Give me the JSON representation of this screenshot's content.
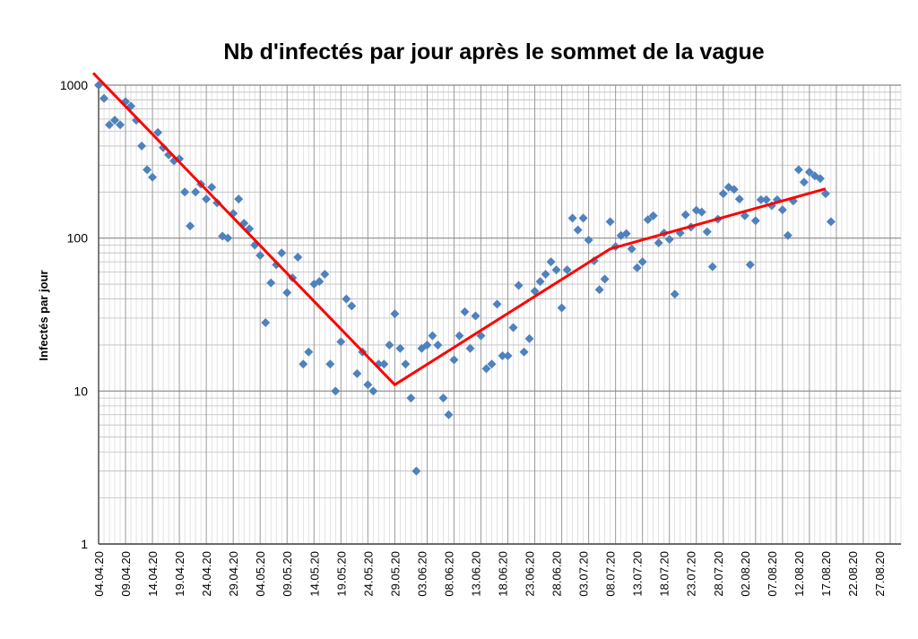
{
  "chart_data": {
    "type": "scatter",
    "title": "Nb d'infectés par jour après le sommet de la vague",
    "xlabel": "",
    "ylabel": "Infectés par jour",
    "yscale": "log",
    "ylim": [
      1,
      1000
    ],
    "xlim": [
      "04.04.20",
      "31.08.20"
    ],
    "grid": true,
    "legend": "none",
    "y_ticks": [
      "1",
      "10",
      "100",
      "1000"
    ],
    "x_ticks": [
      "04.04.20",
      "09.04.20",
      "14.04.20",
      "19.04.20",
      "24.04.20",
      "29.04.20",
      "04.05.20",
      "09.05.20",
      "14.05.20",
      "19.05.20",
      "24.05.20",
      "29.05.20",
      "03.06.20",
      "08.06.20",
      "13.06.20",
      "18.06.20",
      "23.06.20",
      "28.06.20",
      "03.07.20",
      "08.07.20",
      "13.07.20",
      "18.07.20",
      "23.07.20",
      "28.07.20",
      "02.08.20",
      "07.08.20",
      "12.08.20",
      "17.08.20",
      "22.08.20",
      "27.08.20"
    ],
    "colors": {
      "points": "#4F81BD",
      "trend": "#FF0000",
      "grid": "#AAAAAA"
    },
    "series": [
      {
        "type": "scatter",
        "points": [
          [
            "04.04.20",
            1000
          ],
          [
            "05.04.20",
            820
          ],
          [
            "06.04.20",
            550
          ],
          [
            "07.04.20",
            590
          ],
          [
            "08.04.20",
            550
          ],
          [
            "09.04.20",
            780
          ],
          [
            "10.04.20",
            730
          ],
          [
            "11.04.20",
            590
          ],
          [
            "12.04.20",
            400
          ],
          [
            "13.04.20",
            280
          ],
          [
            "14.04.20",
            250
          ],
          [
            "15.04.20",
            490
          ],
          [
            "16.04.20",
            390
          ],
          [
            "17.04.20",
            350
          ],
          [
            "18.04.20",
            320
          ],
          [
            "19.04.20",
            330
          ],
          [
            "20.04.20",
            200
          ],
          [
            "21.04.20",
            120
          ],
          [
            "22.04.20",
            200
          ],
          [
            "23.04.20",
            225
          ],
          [
            "24.04.20",
            180
          ],
          [
            "25.04.20",
            215
          ],
          [
            "26.04.20",
            170
          ],
          [
            "27.04.20",
            103
          ],
          [
            "28.04.20",
            100
          ],
          [
            "29.04.20",
            145
          ],
          [
            "30.04.20",
            180
          ],
          [
            "01.05.20",
            125
          ],
          [
            "02.05.20",
            115
          ],
          [
            "03.05.20",
            90
          ],
          [
            "04.05.20",
            77
          ],
          [
            "05.05.20",
            28
          ],
          [
            "06.05.20",
            51
          ],
          [
            "07.05.20",
            67
          ],
          [
            "08.05.20",
            80
          ],
          [
            "09.05.20",
            44
          ],
          [
            "10.05.20",
            55
          ],
          [
            "11.05.20",
            75
          ],
          [
            "12.05.20",
            15
          ],
          [
            "13.05.20",
            18
          ],
          [
            "14.05.20",
            50
          ],
          [
            "15.05.20",
            52
          ],
          [
            "16.05.20",
            58
          ],
          [
            "17.05.20",
            15
          ],
          [
            "18.05.20",
            10
          ],
          [
            "19.05.20",
            21
          ],
          [
            "20.05.20",
            40
          ],
          [
            "21.05.20",
            36
          ],
          [
            "22.05.20",
            13
          ],
          [
            "23.05.20",
            18
          ],
          [
            "24.05.20",
            11
          ],
          [
            "25.05.20",
            10
          ],
          [
            "26.05.20",
            15
          ],
          [
            "27.05.20",
            15
          ],
          [
            "28.05.20",
            20
          ],
          [
            "29.05.20",
            32
          ],
          [
            "30.05.20",
            19
          ],
          [
            "31.05.20",
            15
          ],
          [
            "01.06.20",
            9
          ],
          [
            "02.06.20",
            3
          ],
          [
            "03.06.20",
            19
          ],
          [
            "04.06.20",
            20
          ],
          [
            "05.06.20",
            23
          ],
          [
            "06.06.20",
            20
          ],
          [
            "07.06.20",
            9
          ],
          [
            "08.06.20",
            7
          ],
          [
            "09.06.20",
            16
          ],
          [
            "10.06.20",
            23
          ],
          [
            "11.06.20",
            33
          ],
          [
            "12.06.20",
            19
          ],
          [
            "13.06.20",
            31
          ],
          [
            "14.06.20",
            23
          ],
          [
            "15.06.20",
            14
          ],
          [
            "16.06.20",
            15
          ],
          [
            "17.06.20",
            37
          ],
          [
            "18.06.20",
            17
          ],
          [
            "19.06.20",
            17
          ],
          [
            "20.06.20",
            26
          ],
          [
            "21.06.20",
            49
          ],
          [
            "22.06.20",
            18
          ],
          [
            "23.06.20",
            22
          ],
          [
            "24.06.20",
            45
          ],
          [
            "25.06.20",
            52
          ],
          [
            "26.06.20",
            58
          ],
          [
            "27.06.20",
            70
          ],
          [
            "28.06.20",
            62
          ],
          [
            "29.06.20",
            35
          ],
          [
            "30.06.20",
            62
          ],
          [
            "01.07.20",
            135
          ],
          [
            "02.07.20",
            113
          ],
          [
            "03.07.20",
            135
          ],
          [
            "04.07.20",
            97
          ],
          [
            "05.07.20",
            71
          ],
          [
            "06.07.20",
            46
          ],
          [
            "07.07.20",
            54
          ],
          [
            "08.07.20",
            128
          ],
          [
            "09.07.20",
            88
          ],
          [
            "10.07.20",
            104
          ],
          [
            "11.07.20",
            107
          ],
          [
            "12.07.20",
            85
          ],
          [
            "13.07.20",
            64
          ],
          [
            "14.07.20",
            70
          ],
          [
            "15.07.20",
            132
          ],
          [
            "16.07.20",
            140
          ],
          [
            "17.07.20",
            93
          ],
          [
            "18.07.20",
            108
          ],
          [
            "19.07.20",
            98
          ],
          [
            "20.07.20",
            43
          ],
          [
            "21.07.20",
            108
          ],
          [
            "22.07.20",
            142
          ],
          [
            "23.07.20",
            118
          ],
          [
            "24.07.20",
            152
          ],
          [
            "25.07.20",
            148
          ],
          [
            "26.07.20",
            110
          ],
          [
            "27.07.20",
            65
          ],
          [
            "28.07.20",
            133
          ],
          [
            "29.07.20",
            195
          ],
          [
            "30.07.20",
            215
          ],
          [
            "31.07.20",
            208
          ],
          [
            "01.08.20",
            180
          ],
          [
            "02.08.20",
            140
          ],
          [
            "03.08.20",
            67
          ],
          [
            "04.08.20",
            130
          ],
          [
            "05.08.20",
            178
          ],
          [
            "06.08.20",
            178
          ],
          [
            "07.08.20",
            163
          ],
          [
            "08.08.20",
            178
          ],
          [
            "09.08.20",
            153
          ],
          [
            "10.08.20",
            104
          ],
          [
            "11.08.20",
            175
          ],
          [
            "12.08.20",
            280
          ],
          [
            "13.08.20",
            232
          ],
          [
            "14.08.20",
            270
          ],
          [
            "15.08.20",
            255
          ],
          [
            "16.08.20",
            245
          ],
          [
            "17.08.20",
            195
          ],
          [
            "18.08.20",
            128
          ]
        ]
      },
      {
        "type": "line",
        "points": [
          [
            "03.04.20",
            1200
          ],
          [
            "29.05.20",
            11
          ],
          [
            "08.07.20",
            85
          ],
          [
            "17.08.20",
            210
          ]
        ]
      }
    ]
  }
}
